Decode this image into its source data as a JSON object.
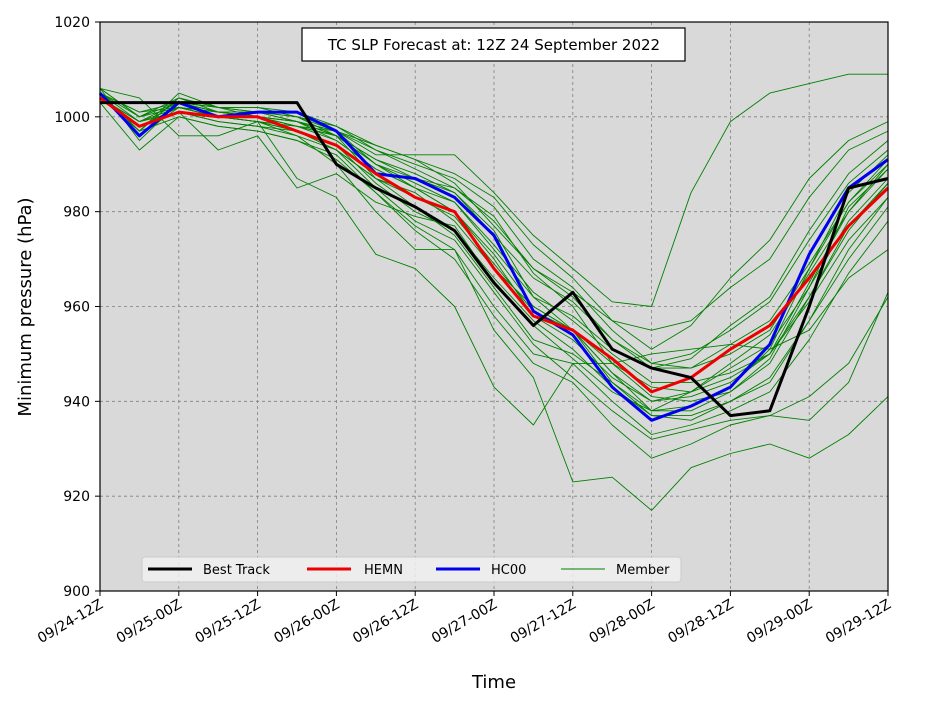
{
  "chart_data": {
    "type": "line",
    "title": "TC SLP Forecast at: 12Z 24 September 2022",
    "xlabel": "Time",
    "ylabel": "Minimum pressure (hPa)",
    "ylim": [
      900,
      1020
    ],
    "yticks": [
      900,
      920,
      940,
      960,
      980,
      1000,
      1020
    ],
    "x": [
      "09/24-12Z",
      "09/24-18Z",
      "09/25-00Z",
      "09/25-06Z",
      "09/25-12Z",
      "09/25-18Z",
      "09/26-00Z",
      "09/26-06Z",
      "09/26-12Z",
      "09/26-18Z",
      "09/27-00Z",
      "09/27-06Z",
      "09/27-12Z",
      "09/27-18Z",
      "09/28-00Z",
      "09/28-06Z",
      "09/28-12Z",
      "09/28-18Z",
      "09/29-00Z",
      "09/29-06Z",
      "09/29-12Z"
    ],
    "xticks": [
      "09/24-12Z",
      "09/25-00Z",
      "09/25-12Z",
      "09/26-00Z",
      "09/26-12Z",
      "09/27-00Z",
      "09/27-12Z",
      "09/28-00Z",
      "09/28-12Z",
      "09/29-00Z",
      "09/29-12Z"
    ],
    "grid": true,
    "legend_position": "lower-left",
    "colors": {
      "best_track": "#000000",
      "hemn": "#ee0000",
      "hc00": "#0000ee",
      "member": "#008000",
      "plot_bg": "#d9d9d9",
      "grid": "#808080"
    },
    "series": [
      {
        "name": "Best Track",
        "color": "#000000",
        "values": [
          1003,
          1003,
          1003,
          1003,
          1003,
          1003,
          990,
          985,
          981,
          976,
          965,
          956,
          963,
          951,
          947,
          945,
          937,
          938,
          960,
          985,
          987
        ]
      },
      {
        "name": "HEMN",
        "color": "#ee0000",
        "values": [
          1004,
          998,
          1001,
          1000,
          1000,
          997,
          994,
          988,
          983,
          980,
          968,
          958,
          955,
          949,
          942,
          945,
          951,
          956,
          966,
          977,
          985
        ]
      },
      {
        "name": "HC00",
        "color": "#0000ee",
        "values": [
          1005,
          996,
          1003,
          1000,
          1001,
          1001,
          997,
          988,
          987,
          983,
          975,
          959,
          954,
          943,
          936,
          939,
          943,
          952,
          971,
          985,
          991
        ]
      }
    ],
    "members_legend": "Member",
    "members": [
      [
        1006,
        1004,
        996,
        996,
        999,
        987,
        983,
        971,
        968,
        960,
        943,
        935,
        948,
        948,
        950,
        951,
        952,
        951,
        955,
        966,
        972
      ],
      [
        1005,
        1000,
        1002,
        1000,
        999,
        998,
        996,
        987,
        984,
        978,
        968,
        960,
        955,
        944,
        938,
        938,
        942,
        948,
        962,
        977,
        986
      ],
      [
        1004,
        998,
        1002,
        1001,
        1000,
        999,
        995,
        989,
        985,
        980,
        970,
        958,
        953,
        945,
        940,
        941,
        944,
        950,
        965,
        980,
        990
      ],
      [
        1005,
        997,
        1004,
        1002,
        1001,
        999,
        996,
        991,
        988,
        984,
        976,
        962,
        955,
        946,
        938,
        939,
        943,
        951,
        968,
        984,
        992
      ],
      [
        1006,
        995,
        1003,
        1001,
        1000,
        998,
        997,
        990,
        987,
        985,
        979,
        967,
        960,
        948,
        941,
        940,
        942,
        949,
        964,
        981,
        989
      ],
      [
        1004,
        999,
        1001,
        999,
        998,
        996,
        993,
        987,
        981,
        975,
        964,
        953,
        950,
        944,
        937,
        937,
        940,
        944,
        957,
        972,
        983
      ],
      [
        1005,
        997,
        1005,
        1002,
        1002,
        1000,
        998,
        993,
        990,
        987,
        981,
        970,
        964,
        955,
        948,
        947,
        950,
        955,
        968,
        982,
        991
      ],
      [
        1003,
        993,
        1000,
        998,
        997,
        995,
        992,
        984,
        977,
        972,
        960,
        950,
        948,
        940,
        933,
        935,
        938,
        942,
        953,
        967,
        978
      ],
      [
        1005,
        996,
        1003,
        1001,
        1001,
        999,
        997,
        992,
        992,
        992,
        984,
        975,
        968,
        961,
        960,
        984,
        999,
        1005,
        1007,
        1009,
        1009
      ],
      [
        1004,
        998,
        1001,
        1000,
        999,
        996,
        990,
        980,
        972,
        972,
        955,
        945,
        923,
        924,
        917,
        926,
        929,
        931,
        928,
        933,
        941
      ],
      [
        1004,
        999,
        1002,
        1000,
        999,
        997,
        993,
        985,
        978,
        974,
        963,
        952,
        945,
        938,
        932,
        934,
        936,
        937,
        936,
        944,
        963
      ],
      [
        1005,
        1001,
        1002,
        1001,
        1001,
        1000,
        996,
        990,
        986,
        982,
        973,
        963,
        957,
        950,
        944,
        944,
        946,
        950,
        962,
        976,
        986
      ],
      [
        1006,
        1000,
        1003,
        1002,
        1002,
        1001,
        998,
        994,
        991,
        988,
        983,
        973,
        966,
        957,
        951,
        956,
        966,
        974,
        987,
        995,
        999
      ],
      [
        1005,
        997,
        1004,
        1001,
        1000,
        998,
        995,
        989,
        985,
        982,
        972,
        962,
        958,
        951,
        947,
        947,
        952,
        957,
        969,
        982,
        990
      ],
      [
        1004,
        999,
        1001,
        993,
        996,
        985,
        988,
        982,
        979,
        977,
        965,
        956,
        949,
        942,
        938,
        942,
        948,
        954,
        967,
        980,
        989
      ],
      [
        1005,
        1001,
        1003,
        1002,
        1000,
        999,
        997,
        994,
        991,
        986,
        977,
        968,
        963,
        957,
        955,
        957,
        964,
        970,
        983,
        993,
        997
      ],
      [
        1004,
        998,
        1002,
        1000,
        1000,
        999,
        996,
        990,
        985,
        980,
        971,
        960,
        955,
        948,
        943,
        942,
        945,
        950,
        961,
        974,
        983
      ],
      [
        1005,
        996,
        1002,
        1000,
        999,
        997,
        994,
        986,
        980,
        976,
        966,
        957,
        951,
        943,
        937,
        936,
        940,
        945,
        957,
        970,
        981
      ],
      [
        1006,
        1000,
        1004,
        1002,
        1001,
        1000,
        997,
        993,
        989,
        985,
        978,
        968,
        962,
        953,
        947,
        949,
        956,
        962,
        976,
        988,
        995
      ],
      [
        1004,
        998,
        1001,
        999,
        998,
        997,
        993,
        987,
        983,
        979,
        969,
        959,
        955,
        946,
        940,
        942,
        947,
        952,
        964,
        978,
        987
      ],
      [
        1005,
        999,
        1003,
        1001,
        1000,
        998,
        996,
        991,
        987,
        984,
        975,
        966,
        961,
        953,
        948,
        950,
        955,
        961,
        974,
        986,
        993
      ],
      [
        1004,
        997,
        1000,
        998,
        997,
        995,
        991,
        984,
        976,
        970,
        958,
        948,
        944,
        935,
        928,
        931,
        935,
        937,
        941,
        948,
        962
      ]
    ]
  }
}
